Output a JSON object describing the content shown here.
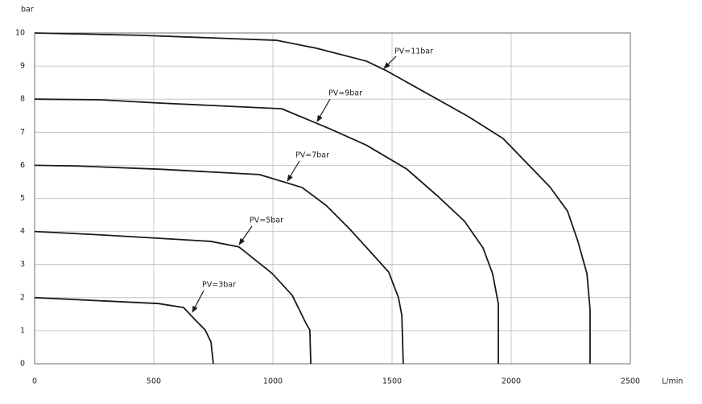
{
  "chart_data": {
    "type": "line",
    "y_label": "bar",
    "x_label": "L/min",
    "xlim": [
      0,
      2500
    ],
    "ylim": [
      0,
      10
    ],
    "xticks": [
      0,
      500,
      1000,
      1500,
      2000,
      2500
    ],
    "yticks": [
      0,
      1,
      2,
      3,
      4,
      5,
      6,
      7,
      8,
      9,
      10
    ],
    "grid": true,
    "annotations": [
      "PV=11bar",
      "PV=9bar",
      "PV=7bar",
      "PV=5bar",
      "PV=3bar"
    ],
    "series": [
      {
        "color": "#1a1a1a",
        "x": [
          0,
          446,
          1014,
          1182,
          1392,
          1476,
          1821,
          1966,
          2162,
          2236,
          2280,
          2318,
          2331,
          2331
        ],
        "values": [
          10,
          9.93,
          9.78,
          9.54,
          9.15,
          8.86,
          7.47,
          6.81,
          5.35,
          4.62,
          3.7,
          2.72,
          1.63,
          0
        ]
      },
      {
        "color": "#1a1a1a",
        "x": [
          0,
          277,
          530,
          1037,
          1240,
          1392,
          1561,
          1696,
          1804,
          1882,
          1922,
          1946,
          1946
        ],
        "values": [
          8,
          7.98,
          7.88,
          7.71,
          7.1,
          6.61,
          5.89,
          5.04,
          4.31,
          3.5,
          2.72,
          1.82,
          0
        ]
      },
      {
        "color": "#1a1a1a",
        "x": [
          0,
          176,
          530,
          943,
          1122,
          1223,
          1324,
          1416,
          1486,
          1527,
          1541,
          1547
        ],
        "values": [
          6,
          5.98,
          5.88,
          5.72,
          5.33,
          4.79,
          4.06,
          3.33,
          2.77,
          2.0,
          1.46,
          0
        ]
      },
      {
        "color": "#1a1a1a",
        "x": [
          0,
          294,
          740,
          858,
          997,
          1081,
          1139,
          1155,
          1159
        ],
        "values": [
          4,
          3.89,
          3.7,
          3.53,
          2.73,
          2.07,
          1.22,
          1.02,
          0
        ]
      },
      {
        "color": "#1a1a1a",
        "x": [
          0,
          520,
          625,
          672,
          716,
          740,
          750
        ],
        "values": [
          2,
          1.82,
          1.7,
          1.34,
          1.02,
          0.66,
          0
        ]
      }
    ]
  }
}
